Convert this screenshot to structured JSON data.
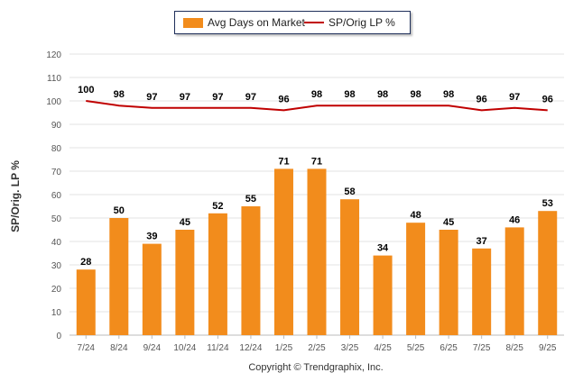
{
  "legend": {
    "bar_label": "Avg Days on Market",
    "line_label": "SP/Orig LP %"
  },
  "footer": {
    "copyright": "Copyright © Trendgraphix, Inc."
  },
  "colors": {
    "bar": "#f28c1c",
    "line": "#c00000",
    "grid": "#e3e3e3",
    "axis_text": "#555555"
  },
  "chart_data": {
    "type": "bar",
    "title": "",
    "xlabel": "",
    "ylabel": "SP/Orig. LP %",
    "ylim": [
      0,
      120
    ],
    "yticks": [
      0,
      10,
      20,
      30,
      40,
      50,
      60,
      70,
      80,
      90,
      100,
      110,
      120
    ],
    "grid": true,
    "legend_position": "top-center",
    "categories": [
      "7/24",
      "8/24",
      "9/24",
      "10/24",
      "11/24",
      "12/24",
      "1/25",
      "2/25",
      "3/25",
      "4/25",
      "5/25",
      "6/25",
      "7/25",
      "8/25",
      "9/25"
    ],
    "series": [
      {
        "name": "Avg Days on Market",
        "type": "bar",
        "values": [
          28,
          50,
          39,
          45,
          52,
          55,
          71,
          71,
          58,
          34,
          48,
          45,
          37,
          46,
          53
        ]
      },
      {
        "name": "SP/Orig LP %",
        "type": "line",
        "values": [
          100,
          98,
          97,
          97,
          97,
          97,
          96,
          98,
          98,
          98,
          98,
          98,
          96,
          97,
          96
        ]
      }
    ]
  }
}
